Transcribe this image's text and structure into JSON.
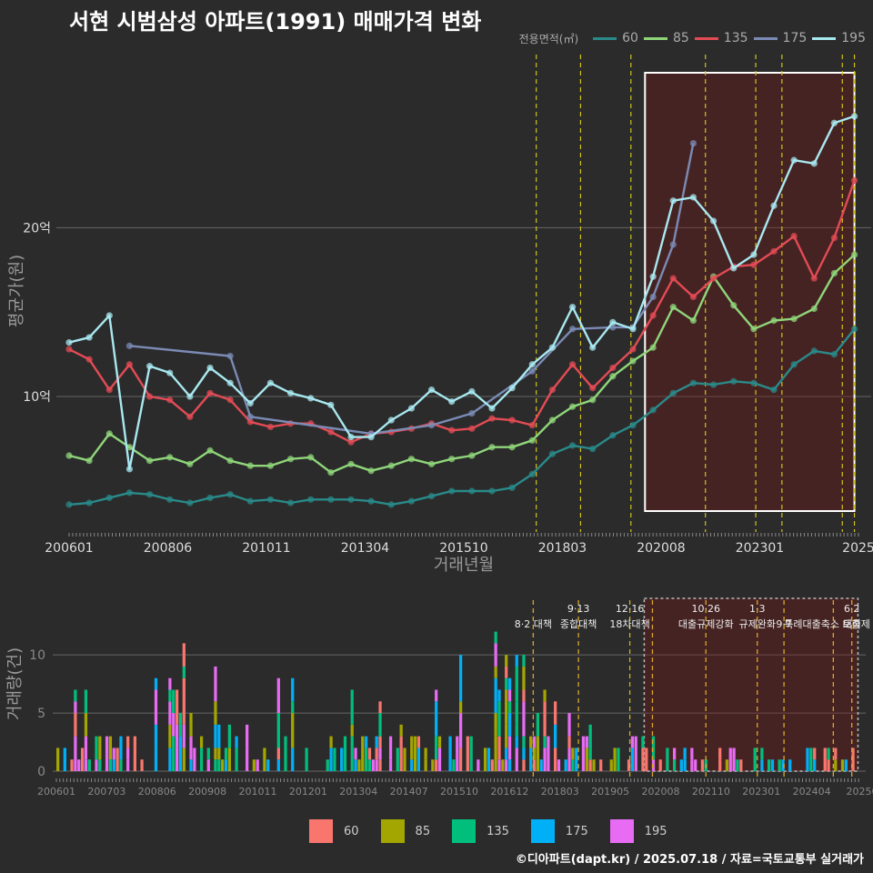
{
  "title": "서현 시범삼성 아파트(1991) 매매가격 변화",
  "credit": "©디아파트(dapt.kr) / 2025.07.18 / 자료=국토교통부 실거래가",
  "colors": {
    "background": "#2b2b2b",
    "area_60": "#2a8a8a",
    "area_85": "#8fd67a",
    "area_135": "#e34b55",
    "area_175": "#7b8bb5",
    "area_195": "#a8e8f0",
    "bar_60": "#f8766d",
    "bar_85": "#a3a500",
    "bar_135": "#00bf7d",
    "bar_175": "#00b0f6",
    "bar_195": "#e76bf3",
    "policy_line": "#d4c21a",
    "highlight_box": "#ffffff"
  },
  "legend_top": {
    "title": "전용면적(㎡)",
    "items": [
      "60",
      "85",
      "135",
      "175",
      "195"
    ]
  },
  "legend_bottom": {
    "items": [
      "60",
      "85",
      "135",
      "175",
      "195"
    ]
  },
  "chart_data": [
    {
      "type": "line",
      "title": "서현 시범삼성 아파트(1991) 매매가격 변화",
      "xlabel": "거래년월",
      "ylabel": "평균가(원)",
      "x_ticks": [
        "200601",
        "200806",
        "201011",
        "201304",
        "201510",
        "201803",
        "202008",
        "202301",
        "2025"
      ],
      "y_ticks": [
        "10억",
        "20억"
      ],
      "y_tick_values": [
        10,
        20
      ],
      "ylim": [
        3,
        29.5
      ],
      "xlim": [
        2006.0,
        2025.6
      ],
      "grid": true,
      "legend": "top-right",
      "highlight_range": [
        2020.3,
        2025.5
      ],
      "policy_dates": [
        2017.6,
        2018.7,
        2019.95,
        2021.8,
        2023.05,
        2023.7,
        2025.2,
        2025.5
      ],
      "series": [
        {
          "name": "60",
          "x": [
            2006.0,
            2006.5,
            2007.0,
            2007.5,
            2008.0,
            2008.5,
            2009.0,
            2009.5,
            2010.0,
            2010.5,
            2011.0,
            2011.5,
            2012.0,
            2012.5,
            2013.0,
            2013.5,
            2014.0,
            2014.5,
            2015.0,
            2015.5,
            2016.0,
            2016.5,
            2017.0,
            2017.5,
            2018.0,
            2018.5,
            2019.0,
            2019.5,
            2020.0,
            2020.5,
            2021.0,
            2021.5,
            2022.0,
            2022.5,
            2023.0,
            2023.5,
            2024.0,
            2024.5,
            2025.0,
            2025.5
          ],
          "y": [
            3.6,
            3.7,
            4.0,
            4.3,
            4.2,
            3.9,
            3.7,
            4.0,
            4.2,
            3.8,
            3.9,
            3.7,
            3.9,
            3.9,
            3.9,
            3.8,
            3.6,
            3.8,
            4.1,
            4.4,
            4.4,
            4.4,
            4.6,
            5.4,
            6.6,
            7.1,
            6.9,
            7.7,
            8.3,
            9.2,
            10.2,
            10.8,
            10.7,
            10.9,
            10.8,
            10.4,
            11.9,
            12.7,
            12.5,
            14.0
          ]
        },
        {
          "name": "85",
          "x": [
            2006.0,
            2006.5,
            2007.0,
            2007.5,
            2008.0,
            2008.5,
            2009.0,
            2009.5,
            2010.0,
            2010.5,
            2011.0,
            2011.5,
            2012.0,
            2012.5,
            2013.0,
            2013.5,
            2014.0,
            2014.5,
            2015.0,
            2015.5,
            2016.0,
            2016.5,
            2017.0,
            2017.5,
            2018.0,
            2018.5,
            2019.0,
            2019.5,
            2020.0,
            2020.5,
            2021.0,
            2021.5,
            2022.0,
            2022.5,
            2023.0,
            2023.5,
            2024.0,
            2024.5,
            2025.0,
            2025.5
          ],
          "y": [
            6.5,
            6.2,
            7.8,
            7.0,
            6.2,
            6.4,
            6.0,
            6.8,
            6.2,
            5.9,
            5.9,
            6.3,
            6.4,
            5.5,
            6.0,
            5.6,
            5.9,
            6.3,
            6.0,
            6.3,
            6.5,
            7.0,
            7.0,
            7.4,
            8.6,
            9.4,
            9.8,
            11.2,
            12.1,
            12.9,
            15.3,
            14.5,
            17.1,
            15.4,
            14.0,
            14.5,
            14.6,
            15.2,
            17.3,
            18.4
          ]
        },
        {
          "name": "135",
          "x": [
            2006.0,
            2006.5,
            2007.0,
            2007.5,
            2008.0,
            2008.5,
            2009.0,
            2009.5,
            2010.0,
            2010.5,
            2011.0,
            2011.5,
            2012.0,
            2012.5,
            2013.0,
            2013.5,
            2014.0,
            2014.5,
            2015.0,
            2015.5,
            2016.0,
            2016.5,
            2017.0,
            2017.5,
            2018.0,
            2018.5,
            2019.0,
            2019.5,
            2020.0,
            2020.5,
            2021.0,
            2021.5,
            2022.0,
            2022.5,
            2023.0,
            2023.5,
            2024.0,
            2024.5,
            2025.0,
            2025.5
          ],
          "y": [
            12.8,
            12.2,
            10.4,
            11.9,
            10.0,
            9.8,
            8.8,
            10.2,
            9.8,
            8.5,
            8.2,
            8.4,
            8.4,
            7.9,
            7.3,
            7.8,
            7.9,
            8.1,
            8.4,
            8.0,
            8.1,
            8.7,
            8.6,
            8.3,
            10.4,
            11.9,
            10.5,
            11.7,
            12.8,
            14.8,
            17.0,
            15.9,
            17.0,
            17.7,
            17.8,
            18.6,
            19.5,
            17.0,
            19.4,
            22.8
          ]
        },
        {
          "name": "175",
          "x": [
            2007.5,
            2010.0,
            2010.5,
            2013.5,
            2015.0,
            2016.0,
            2017.5,
            2018.5,
            2019.5,
            2020.0,
            2020.5,
            2021.0,
            2021.5
          ],
          "y": [
            13.0,
            12.4,
            8.8,
            7.8,
            8.3,
            9.0,
            11.5,
            14.0,
            14.1,
            14.1,
            15.9,
            19.0,
            25.0
          ]
        },
        {
          "name": "195",
          "x": [
            2006.0,
            2006.5,
            2007.0,
            2007.5,
            2008.0,
            2008.5,
            2009.0,
            2009.5,
            2010.0,
            2010.5,
            2011.0,
            2011.5,
            2012.0,
            2012.5,
            2013.0,
            2013.5,
            2014.0,
            2014.5,
            2015.0,
            2015.5,
            2016.0,
            2016.5,
            2017.0,
            2017.5,
            2018.0,
            2018.5,
            2019.0,
            2019.5,
            2020.0,
            2020.5,
            2021.0,
            2021.5,
            2022.0,
            2022.5,
            2023.0,
            2023.5,
            2024.0,
            2024.5,
            2025.0,
            2025.5
          ],
          "y": [
            13.2,
            13.5,
            14.8,
            5.7,
            11.8,
            11.4,
            10.0,
            11.7,
            10.8,
            9.6,
            10.8,
            10.2,
            9.9,
            9.5,
            7.6,
            7.6,
            8.6,
            9.3,
            10.4,
            9.7,
            10.3,
            9.3,
            10.5,
            11.9,
            12.9,
            15.3,
            12.9,
            14.4,
            14.0,
            17.1,
            21.6,
            21.8,
            20.4,
            17.6,
            18.4,
            21.3,
            24.0,
            23.8,
            26.2,
            26.6
          ]
        }
      ]
    },
    {
      "type": "bar",
      "xlabel": "",
      "ylabel": "거래량(건)",
      "y_ticks": [
        "0",
        "5",
        "10"
      ],
      "ylim": [
        0,
        14
      ],
      "x_ticks": [
        "200601",
        "200703",
        "200806",
        "200908",
        "201011",
        "201201",
        "201304",
        "201407",
        "201510",
        "201612",
        "201803",
        "201905",
        "202008",
        "202110",
        "202301",
        "202404",
        "20250"
      ],
      "stacked": true,
      "legend": "bottom",
      "highlight_range": [
        2020.3,
        2025.5
      ],
      "policy_events": [
        {
          "x": 2017.6,
          "label_top": "",
          "label_bottom": "8·2 대책"
        },
        {
          "x": 2018.7,
          "label_top": "9·13",
          "label_bottom": "종합대책"
        },
        {
          "x": 2019.95,
          "label_top": "12·16",
          "label_bottom": "18차대책"
        },
        {
          "x": 2020.5,
          "label_top": "",
          "label_bottom": ""
        },
        {
          "x": 2021.8,
          "label_top": "10·26",
          "label_bottom": "대출규제강화"
        },
        {
          "x": 2023.05,
          "label_top": "1·3",
          "label_bottom": "규제완화"
        },
        {
          "x": 2023.7,
          "label_top": "",
          "label_bottom": "9·7"
        },
        {
          "x": 2024.9,
          "label_top": "",
          "label_bottom": "특례대출축소 토허제 해"
        },
        {
          "x": 2025.35,
          "label_top": "6·2",
          "label_bottom": "대출"
        }
      ]
    }
  ]
}
